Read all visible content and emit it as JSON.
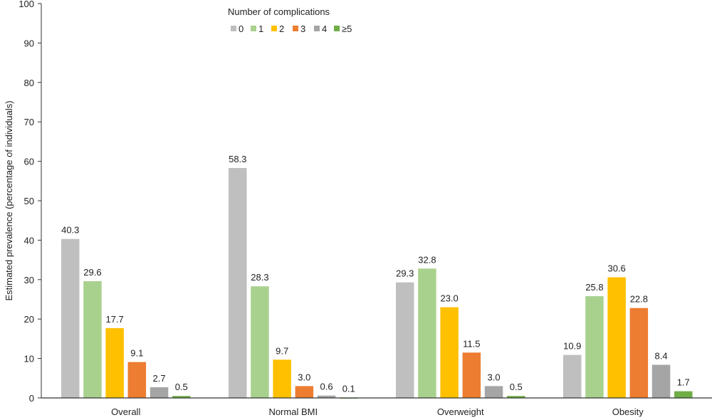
{
  "chart_data": {
    "type": "bar",
    "title": "",
    "xlabel": "",
    "ylabel": "Estimated prevalence (percentage of individuals)",
    "ylim": [
      0,
      100
    ],
    "yticks": [
      0,
      10,
      20,
      30,
      40,
      50,
      60,
      70,
      80,
      90,
      100
    ],
    "grid": false,
    "legend": {
      "title": "Number of complications",
      "placement": "top-center"
    },
    "categories": [
      "Overall",
      "Normal BMI",
      "Overweight",
      "Obesity"
    ],
    "series": [
      {
        "name": "0",
        "color": "#BFBFBF",
        "values": [
          40.3,
          58.3,
          29.3,
          10.9
        ]
      },
      {
        "name": "1",
        "color": "#A9D18E",
        "values": [
          29.6,
          28.3,
          32.8,
          25.8
        ]
      },
      {
        "name": "2",
        "color": "#FFC000",
        "values": [
          17.7,
          9.7,
          23.0,
          30.6
        ]
      },
      {
        "name": "3",
        "color": "#ED7D31",
        "values": [
          9.1,
          3.0,
          11.5,
          22.8
        ]
      },
      {
        "name": "4",
        "color": "#A5A5A5",
        "values": [
          2.7,
          0.6,
          3.0,
          8.4
        ]
      },
      {
        "name": "≥5",
        "color": "#70AD47",
        "values": [
          0.5,
          0.1,
          0.5,
          1.7
        ]
      }
    ]
  }
}
